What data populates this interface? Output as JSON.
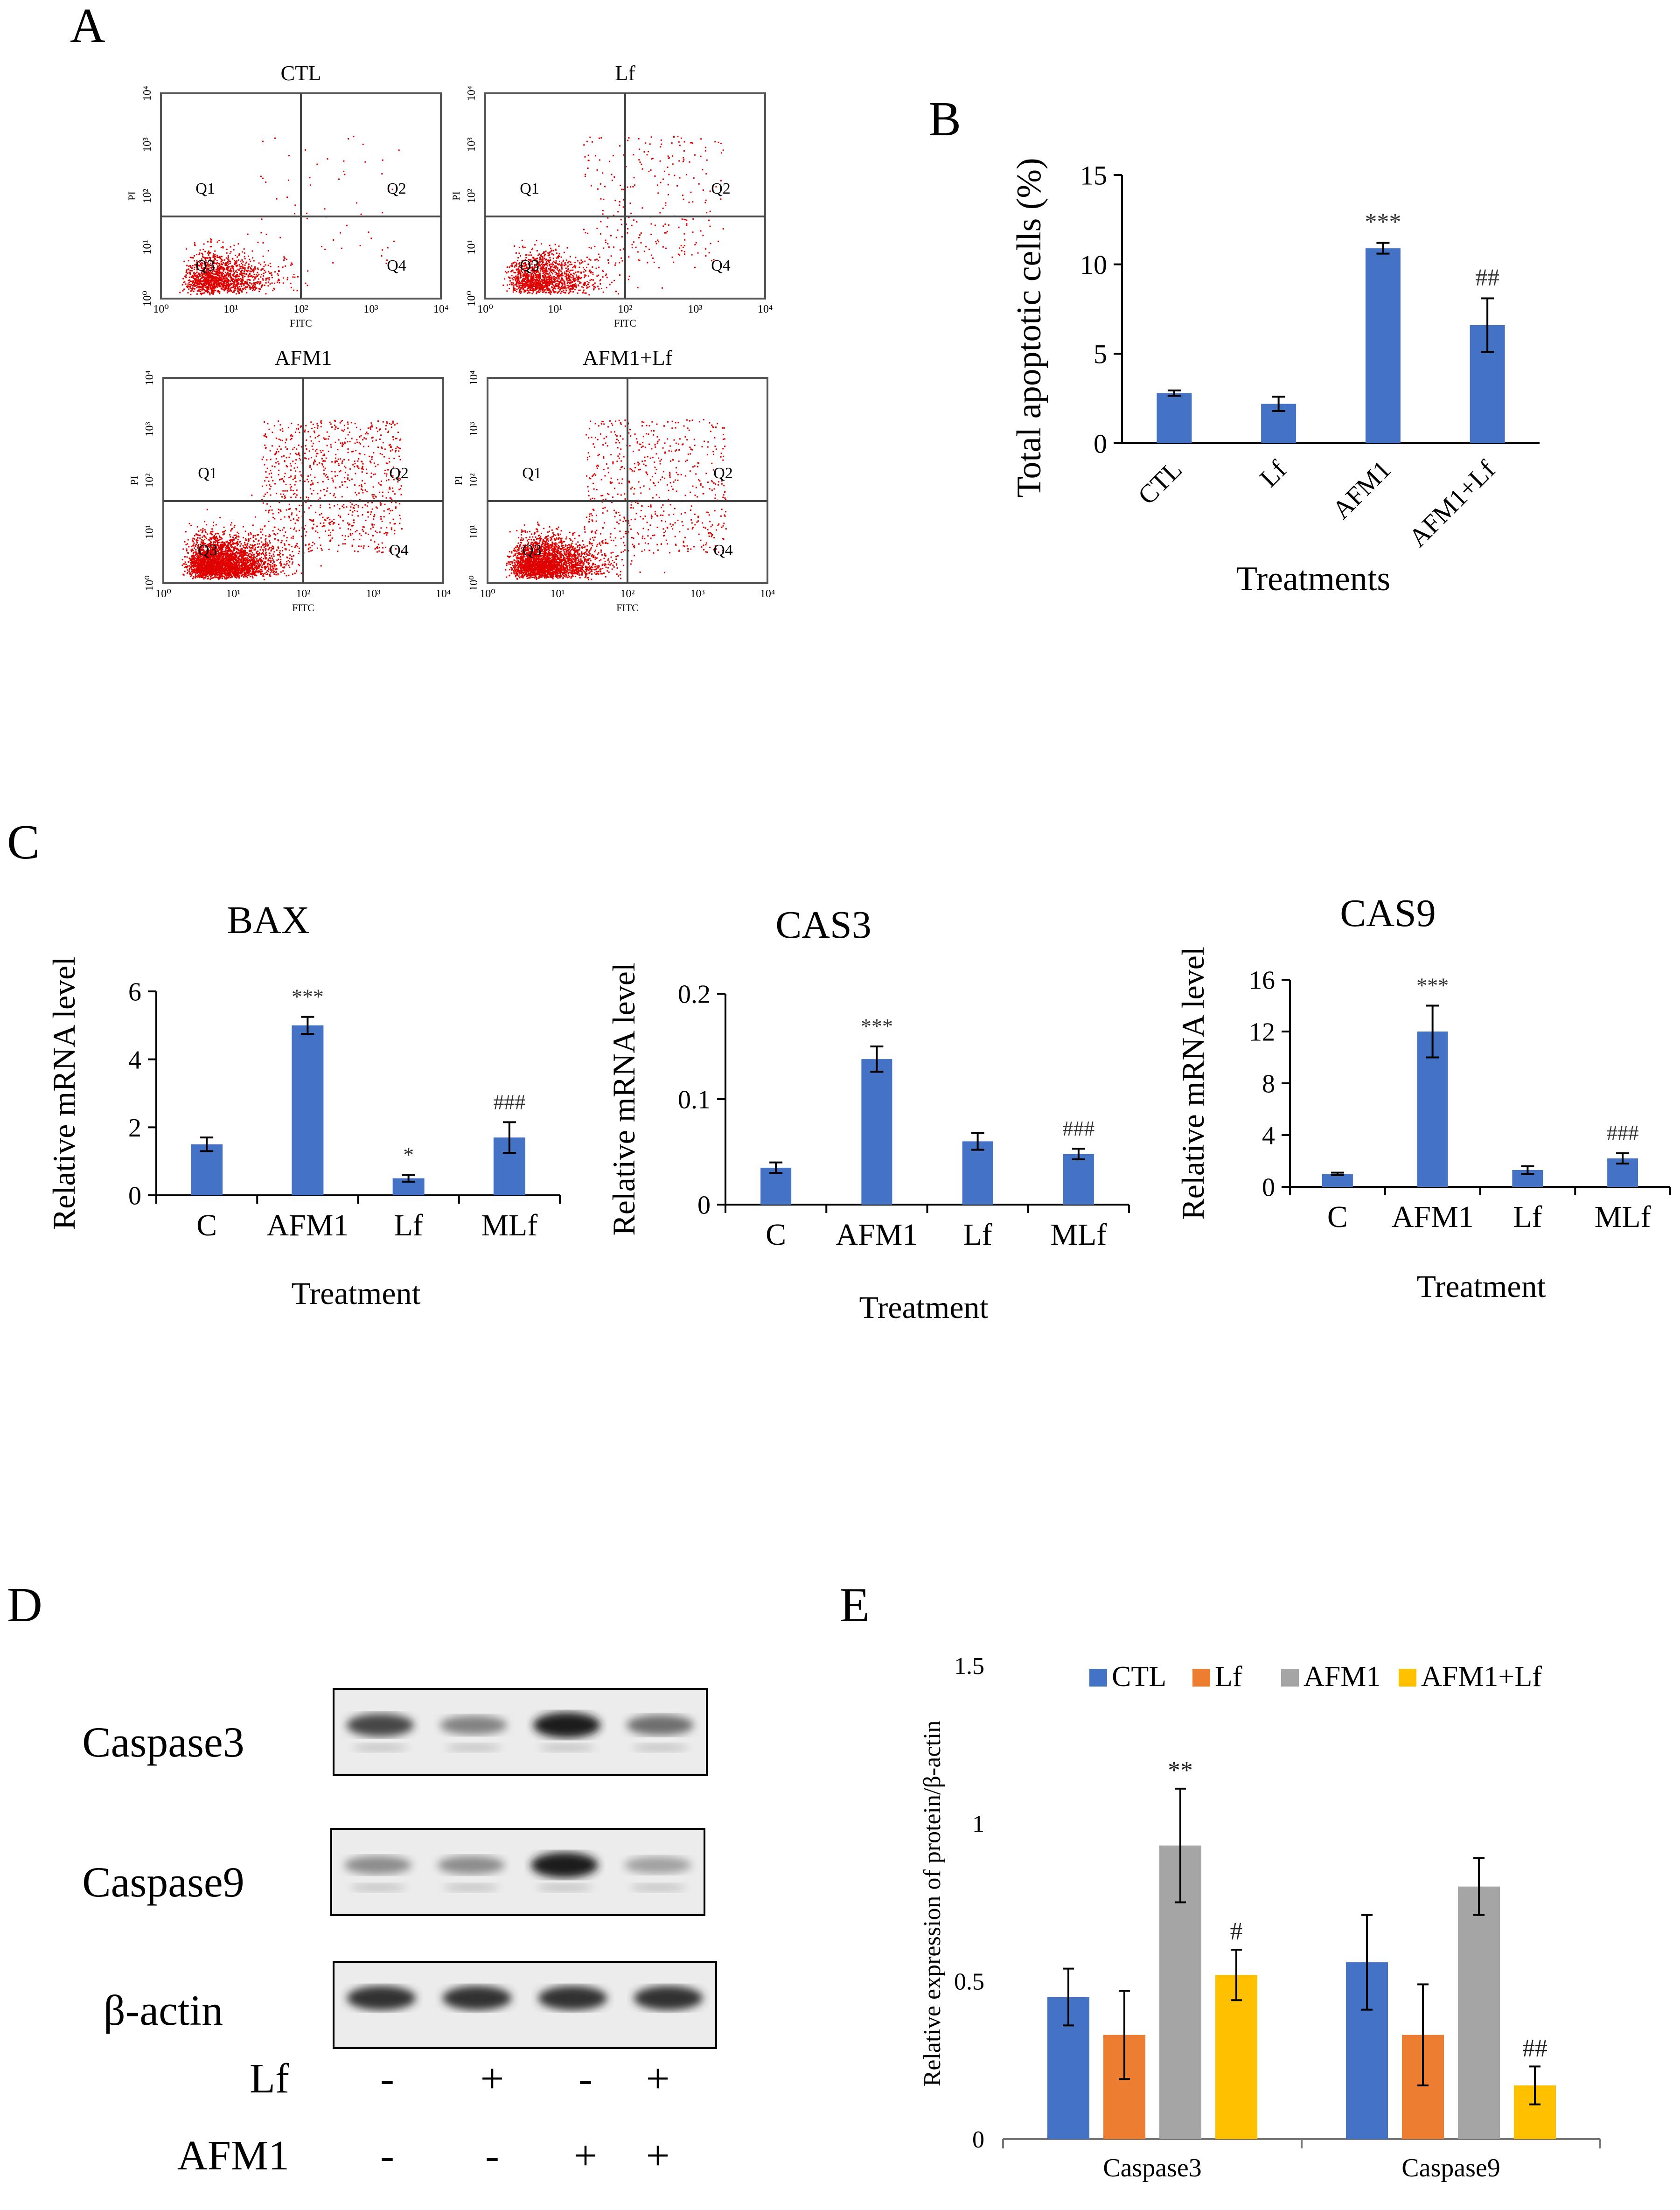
{
  "colors": {
    "bar_blue": "#4472C4",
    "orange": "#ED7D31",
    "gray": "#A5A5A5",
    "yellow": "#FFC000",
    "flow_dot": "#E00000",
    "quad_line": "#444444",
    "axis": "#000000"
  },
  "panel_letters": [
    "A",
    "B",
    "C",
    "D",
    "E"
  ],
  "flow": {
    "plots": [
      {
        "title": "CTL",
        "density": "low"
      },
      {
        "title": "Lf",
        "density": "low-q2"
      },
      {
        "title": "AFM1",
        "density": "high"
      },
      {
        "title": "AFM1+Lf",
        "density": "medium"
      }
    ],
    "quadrants": [
      "Q1",
      "Q2",
      "Q3",
      "Q4"
    ],
    "x_ticks": [
      "10⁰",
      "10¹",
      "10²",
      "10³",
      "10⁴"
    ],
    "y_ticks": [
      "10⁰",
      "10¹",
      "10²",
      "10³",
      "10⁴"
    ],
    "x_label": "FITC",
    "y_label": "PI"
  },
  "chart_data": [
    {
      "panel": "B",
      "type": "bar",
      "categories": [
        "CTL",
        "Lf",
        "AFM1",
        "AFM1+Lf"
      ],
      "values": [
        2.8,
        2.2,
        10.9,
        6.6
      ],
      "errors": [
        0.15,
        0.4,
        0.3,
        1.5
      ],
      "annotations": [
        "",
        "",
        "***",
        "##"
      ],
      "ylim": [
        0,
        15
      ],
      "yticks": [
        "0",
        "5",
        "10",
        "15"
      ],
      "ylabel": "Total apoptotic cells (%)",
      "xlabel": "Treatments"
    },
    {
      "panel": "C",
      "type": "bar",
      "title": "BAX",
      "categories": [
        "C",
        "AFM1",
        "Lf",
        "MLf"
      ],
      "values": [
        1.5,
        5.0,
        0.5,
        1.7
      ],
      "errors": [
        0.2,
        0.25,
        0.1,
        0.45
      ],
      "annotations": [
        "",
        "***",
        "*",
        "###"
      ],
      "ylim": [
        0,
        6
      ],
      "yticks": [
        "0",
        "2",
        "4",
        "6"
      ],
      "ylabel": "Relative mRNA level",
      "xlabel": "Treatment"
    },
    {
      "panel": "C",
      "type": "bar",
      "title": "CAS3",
      "categories": [
        "C",
        "AFM1",
        "Lf",
        "MLf"
      ],
      "values": [
        0.035,
        0.138,
        0.06,
        0.048
      ],
      "errors": [
        0.005,
        0.012,
        0.008,
        0.005
      ],
      "annotations": [
        "",
        "***",
        "",
        "###"
      ],
      "ylim": [
        0,
        0.2
      ],
      "yticks": [
        "0",
        "0.1",
        "0.2"
      ],
      "ylabel": "Relative mRNA level",
      "xlabel": "Treatment"
    },
    {
      "panel": "C",
      "type": "bar",
      "title": "CAS9",
      "categories": [
        "C",
        "AFM1",
        "Lf",
        "MLf"
      ],
      "values": [
        1.0,
        12.0,
        1.3,
        2.2
      ],
      "errors": [
        0.1,
        2.0,
        0.3,
        0.4
      ],
      "annotations": [
        "",
        "***",
        "",
        "###"
      ],
      "ylim": [
        0,
        16
      ],
      "yticks": [
        "0",
        "4",
        "8",
        "12",
        "16"
      ],
      "ylabel": "Relative mRNA level",
      "xlabel": "Treatment"
    },
    {
      "panel": "E",
      "type": "bar",
      "categories": [
        "Caspase3",
        "Caspase9"
      ],
      "series": [
        {
          "name": "CTL",
          "values": [
            0.45,
            0.56
          ],
          "errors": [
            0.09,
            0.15
          ],
          "annotations": [
            "",
            ""
          ]
        },
        {
          "name": "Lf",
          "values": [
            0.33,
            0.33
          ],
          "errors": [
            0.14,
            0.16
          ],
          "annotations": [
            "",
            ""
          ]
        },
        {
          "name": "AFM1",
          "values": [
            0.93,
            0.8
          ],
          "errors": [
            0.18,
            0.09
          ],
          "annotations": [
            "**",
            ""
          ]
        },
        {
          "name": "AFM1+Lf",
          "values": [
            0.52,
            0.17
          ],
          "errors": [
            0.08,
            0.06
          ],
          "annotations": [
            "#",
            "##"
          ]
        }
      ],
      "ylim": [
        0,
        1.5
      ],
      "yticks": [
        "0",
        "0.5",
        "1",
        "1.5"
      ],
      "ylabel": "Relative expression of protein/β-actin",
      "xlabel": ""
    }
  ],
  "blot": {
    "rows": [
      {
        "label": "Caspase3",
        "intensity": [
          0.75,
          0.45,
          0.95,
          0.55
        ]
      },
      {
        "label": "Caspase9",
        "intensity": [
          0.4,
          0.4,
          0.95,
          0.3
        ]
      },
      {
        "label": "β-actin",
        "intensity": [
          0.85,
          0.85,
          0.85,
          0.85
        ]
      }
    ],
    "treatments": [
      {
        "label": "Lf",
        "signs": [
          "-",
          "+",
          "-",
          "+"
        ]
      },
      {
        "label": "AFM1",
        "signs": [
          "-",
          "-",
          "+",
          "+"
        ]
      }
    ]
  }
}
